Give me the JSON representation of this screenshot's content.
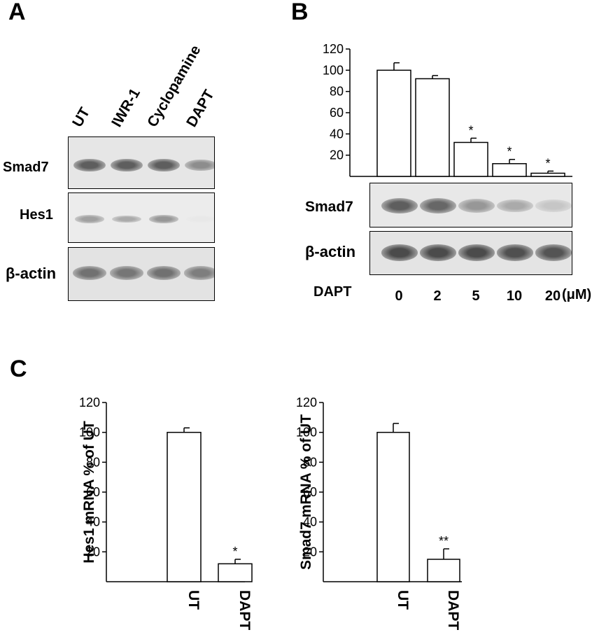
{
  "panel_labels": {
    "a": "A",
    "b": "B",
    "c": "C"
  },
  "panel_a": {
    "lanes": [
      "UT",
      "IWR-1",
      "Cyclopamine",
      "DAPT"
    ],
    "rows": [
      "Smad7",
      "Hes1",
      "β-actin"
    ],
    "band_intensity": {
      "Smad7": [
        0.85,
        0.85,
        0.85,
        0.6
      ],
      "Hes1": [
        0.5,
        0.45,
        0.55,
        0.12
      ],
      "β-actin": [
        0.75,
        0.72,
        0.75,
        0.68
      ]
    }
  },
  "panel_b": {
    "rows": [
      "Smad7",
      "β-actin"
    ],
    "treatment_label": "DAPT",
    "dose_unit": "(μM)",
    "band_intensity": {
      "Smad7": [
        0.85,
        0.8,
        0.55,
        0.45,
        0.3
      ],
      "β-actin": [
        0.95,
        0.95,
        0.95,
        0.92,
        0.9
      ]
    }
  },
  "chart_data": [
    {
      "id": "panel-b-chart",
      "type": "bar",
      "categories": [
        "0",
        "2",
        "5",
        "10",
        "20"
      ],
      "values": [
        100,
        92,
        32,
        12,
        3
      ],
      "errors": [
        7,
        3,
        4,
        4,
        2
      ],
      "significance": [
        "",
        "",
        "*",
        "*",
        "*"
      ],
      "yticks": [
        20,
        40,
        60,
        80,
        100,
        120
      ],
      "ylim": [
        0,
        120
      ],
      "xlabel": "",
      "ylabel": "",
      "title": ""
    },
    {
      "id": "panel-c-hes1",
      "type": "bar",
      "categories": [
        "UT",
        "DAPT"
      ],
      "values": [
        100,
        12
      ],
      "errors": [
        3,
        3
      ],
      "significance": [
        "",
        "*"
      ],
      "yticks": [
        20,
        40,
        60,
        80,
        100,
        120
      ],
      "ylim": [
        0,
        120
      ],
      "ylabel": "Hes1 mRNA  % of UT",
      "xlabel": "",
      "title": ""
    },
    {
      "id": "panel-c-smad7",
      "type": "bar",
      "categories": [
        "UT",
        "DAPT"
      ],
      "values": [
        100,
        15
      ],
      "errors": [
        6,
        7
      ],
      "significance": [
        "",
        "**"
      ],
      "yticks": [
        20,
        40,
        60,
        80,
        100,
        120
      ],
      "ylim": [
        0,
        120
      ],
      "ylabel": "Smad7 mRNA  % of UT",
      "xlabel": "",
      "title": ""
    }
  ]
}
